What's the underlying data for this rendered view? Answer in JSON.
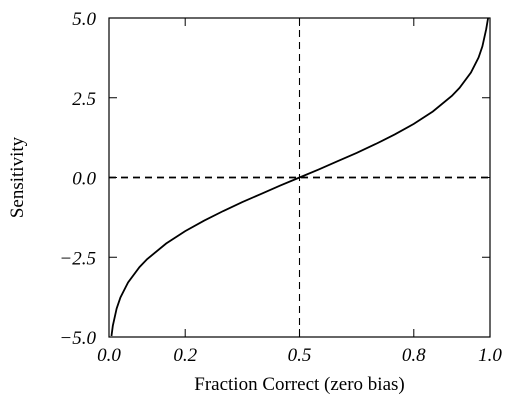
{
  "chart_data": {
    "type": "line",
    "xlabel": "Fraction Correct (zero bias)",
    "ylabel": "Sensitivity",
    "xlim": [
      0.0,
      1.0
    ],
    "ylim": [
      -5.0,
      5.0
    ],
    "x_ticks": [
      0.0,
      0.2,
      0.5,
      0.8,
      1.0
    ],
    "x_tick_labels": [
      "0.0",
      "0.2",
      "0.5",
      "0.8",
      "1.0"
    ],
    "y_ticks": [
      -5.0,
      -2.5,
      0.0,
      2.5,
      5.0
    ],
    "y_tick_labels": [
      "−5.0",
      "−2.5",
      "0.0",
      "2.5",
      "5.0"
    ],
    "grid": false,
    "series": [
      {
        "style": "solid",
        "x": [
          0.0065,
          0.01,
          0.02,
          0.03,
          0.05,
          0.08,
          0.1,
          0.15,
          0.2,
          0.25,
          0.3,
          0.35,
          0.4,
          0.45,
          0.5,
          0.55,
          0.6,
          0.65,
          0.7,
          0.75,
          0.8,
          0.85,
          0.9,
          0.92,
          0.95,
          0.97,
          0.98,
          0.99,
          0.995
        ],
        "y": [
          -4.97,
          -4.65,
          -4.11,
          -3.76,
          -3.29,
          -2.81,
          -2.56,
          -2.07,
          -1.68,
          -1.35,
          -1.05,
          -0.77,
          -0.51,
          -0.25,
          0.0,
          0.25,
          0.51,
          0.77,
          1.05,
          1.35,
          1.68,
          2.07,
          2.56,
          2.81,
          3.29,
          3.76,
          4.11,
          4.65,
          5.0
        ]
      }
    ],
    "reference_lines": [
      {
        "orientation": "horizontal",
        "y": 0.0,
        "style": "dashed"
      },
      {
        "orientation": "vertical",
        "x": 0.5,
        "style": "dashed"
      }
    ]
  }
}
